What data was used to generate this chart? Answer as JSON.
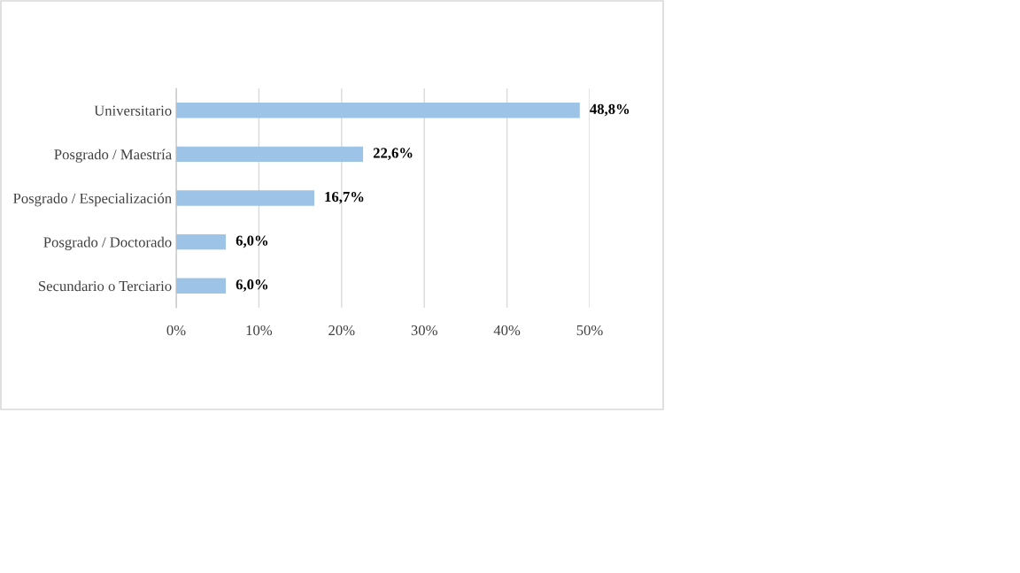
{
  "chart_data": {
    "type": "bar",
    "orientation": "horizontal",
    "categories": [
      "Universitario",
      "Posgrado / Maestría",
      "Posgrado / Especialización",
      "Posgrado / Doctorado",
      "Secundario o Terciario"
    ],
    "values": [
      48.8,
      22.6,
      16.7,
      6.0,
      6.0
    ],
    "value_labels": [
      "48,8%",
      "22,6%",
      "16,7%",
      "6,0%",
      "6,0%"
    ],
    "color": "#9dc3e6",
    "xlim": [
      0,
      50
    ],
    "xticks": [
      {
        "value": 0,
        "label": "0%"
      },
      {
        "value": 10,
        "label": "10%"
      },
      {
        "value": 20,
        "label": "20%"
      },
      {
        "value": 30,
        "label": "30%"
      },
      {
        "value": 40,
        "label": "40%"
      },
      {
        "value": 50,
        "label": "50%"
      }
    ],
    "grid": "x",
    "legend": false
  }
}
